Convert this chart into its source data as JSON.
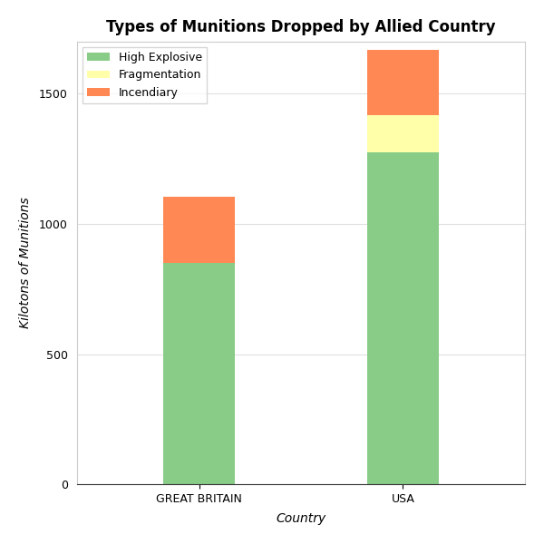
{
  "title": "Types of Munitions Dropped by Allied Country",
  "xlabel": "Country",
  "ylabel": "Kilotons of Munitions",
  "categories": [
    "GREAT BRITAIN",
    "USA"
  ],
  "high_explosive": [
    851.4,
    1275.0
  ],
  "fragmentation": [
    0.0,
    143.0
  ],
  "incendiary": [
    253.0,
    250.0
  ],
  "color_high_explosive": "#88cc88",
  "color_fragmentation": "#ffffaa",
  "color_incendiary": "#ff8855",
  "ylim": [
    0,
    1700
  ],
  "yticks": [
    0,
    500,
    1000,
    1500
  ],
  "legend_labels": [
    "High Explosive",
    "Fragmentation",
    "Incendiary"
  ],
  "background_color": "#ffffff",
  "grid_color": "#e0e0e0",
  "title_fontsize": 12,
  "label_fontsize": 10,
  "bar_width": 0.35
}
